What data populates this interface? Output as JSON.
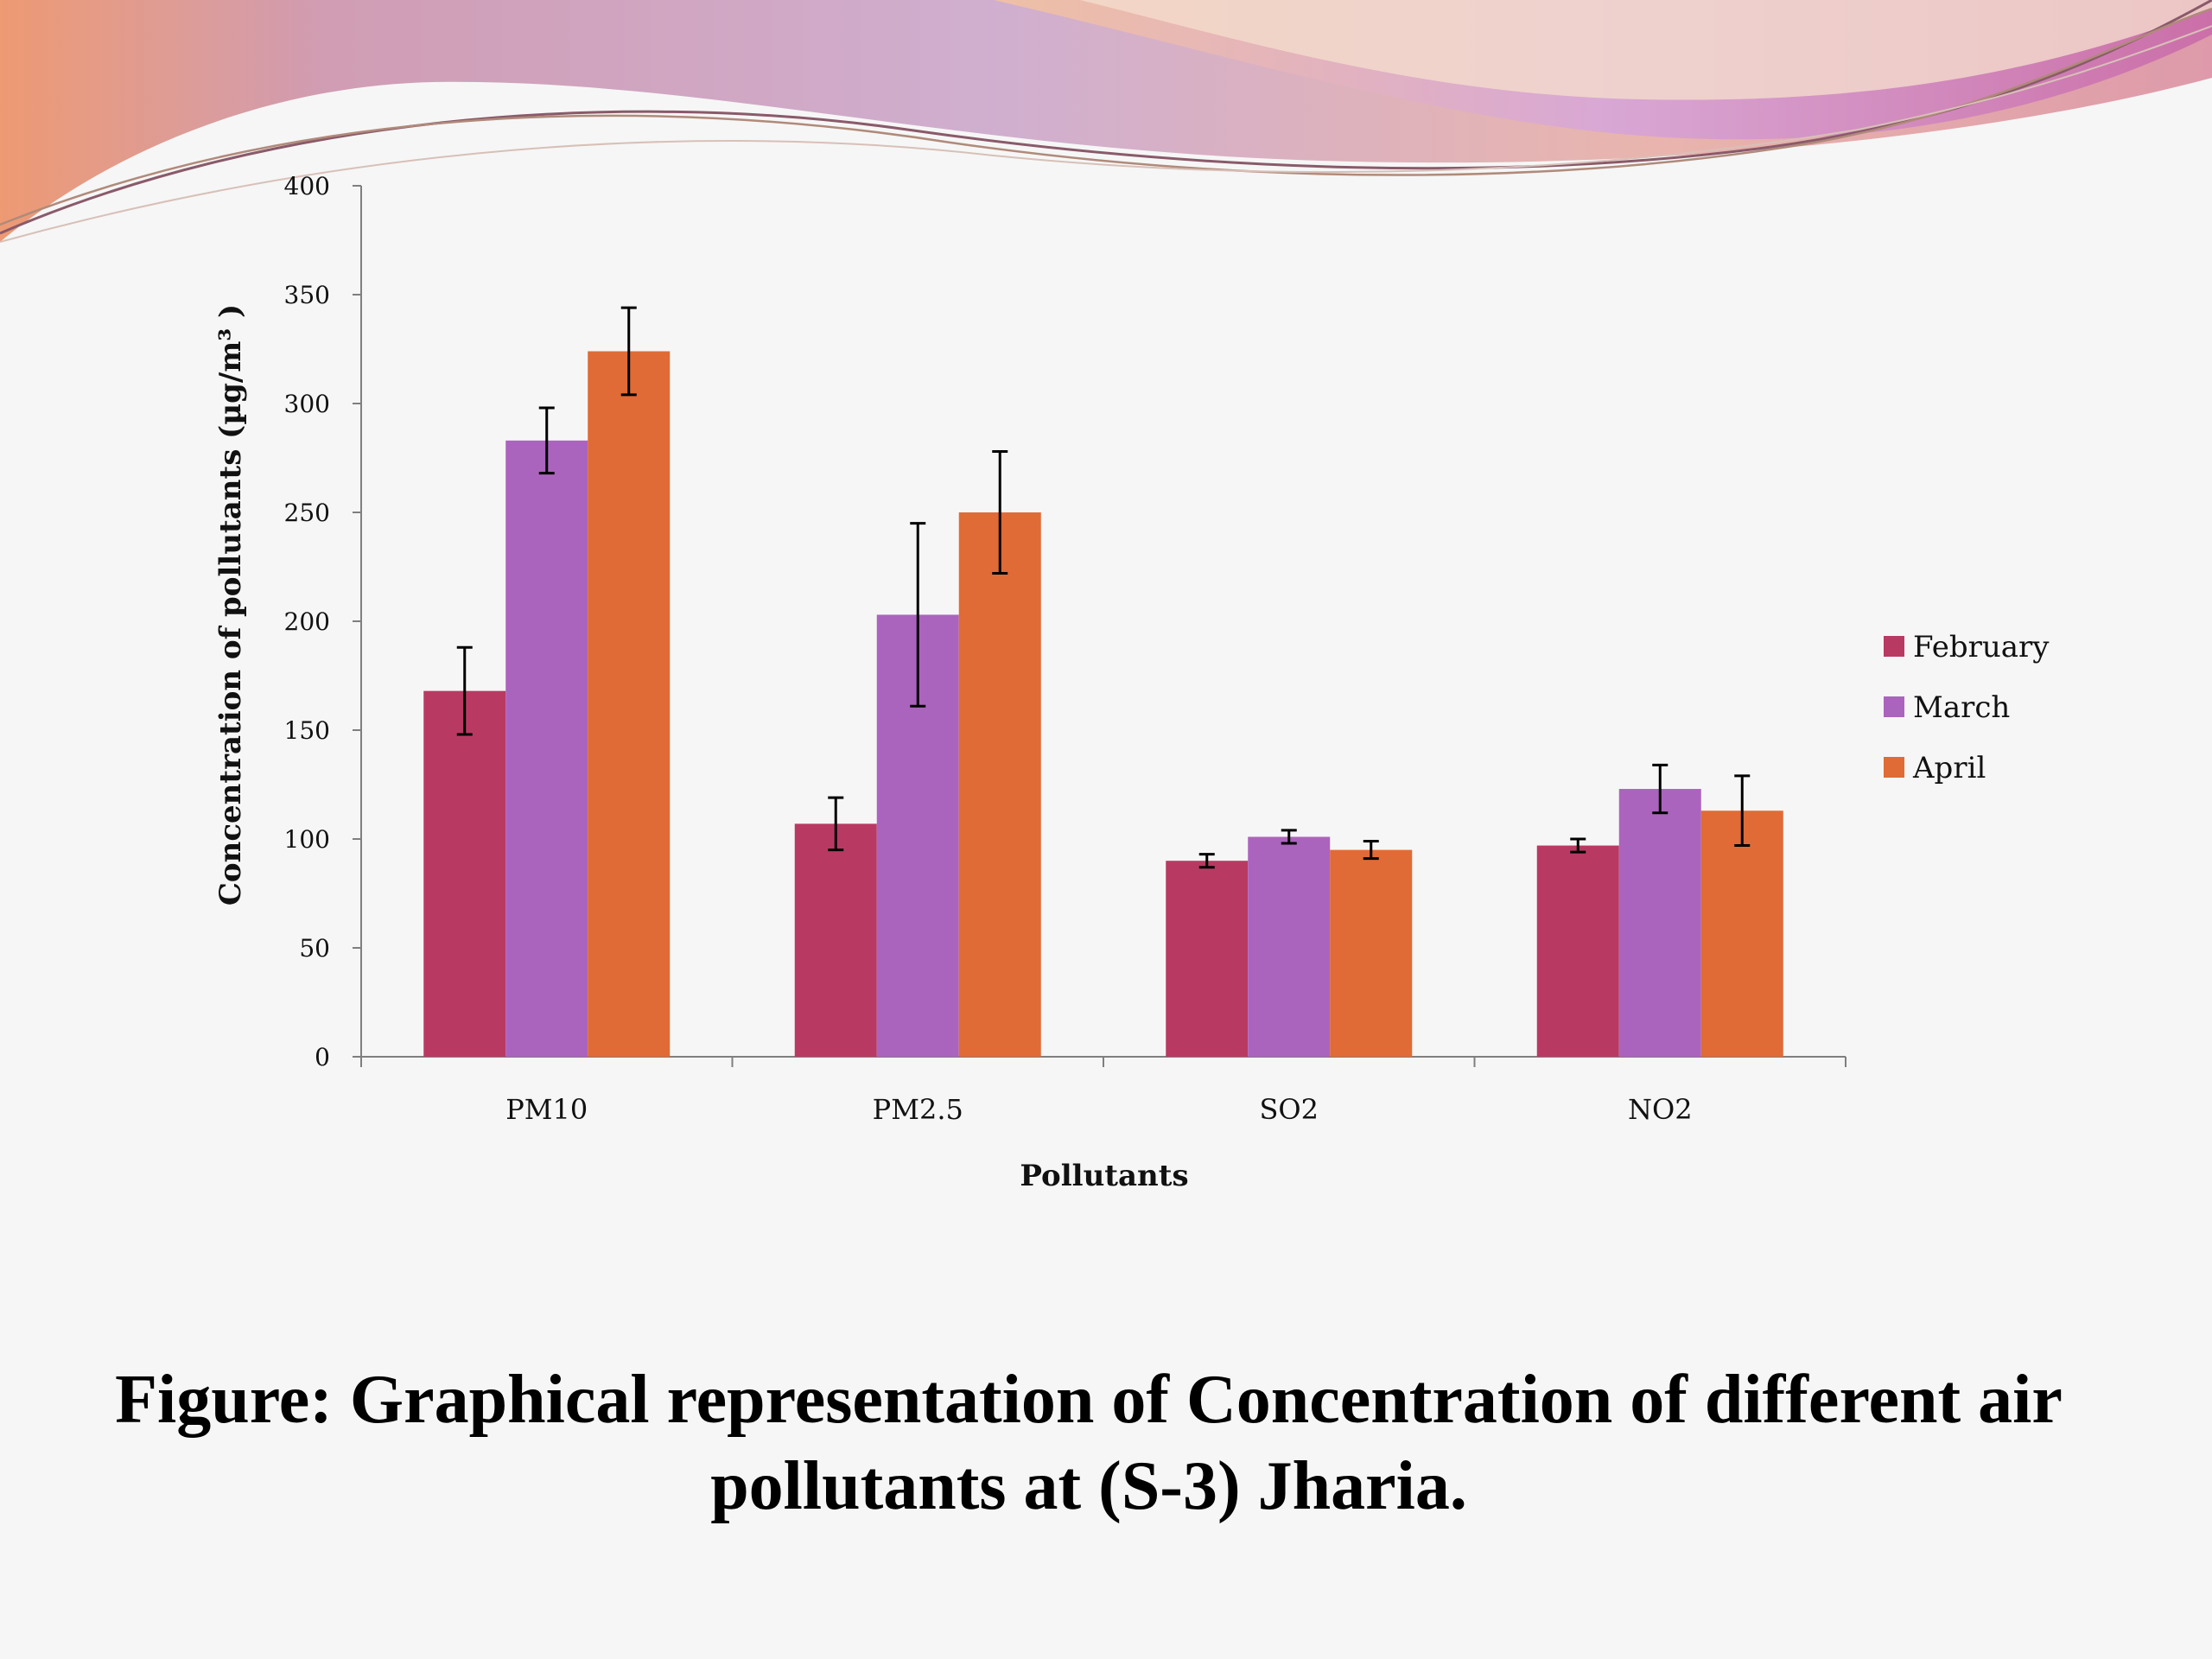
{
  "colors": {
    "background": "#f6f6f6",
    "february": "#b83a63",
    "march": "#ab64bd",
    "april": "#e06b36",
    "axis": "#7f7f7f"
  },
  "chart_data": {
    "type": "bar",
    "xlabel": "Pollutants",
    "ylabel": "Concentration of pollutants  (µg/m³ )",
    "ylim": [
      0,
      400
    ],
    "yticks": [
      0,
      50,
      100,
      150,
      200,
      250,
      300,
      350,
      400
    ],
    "grid": false,
    "legend_position": "right",
    "categories": [
      "PM10",
      "PM2.5",
      "SO2",
      "NO2"
    ],
    "series": [
      {
        "name": "February",
        "color": "#b83a63",
        "values": [
          168,
          107,
          90,
          97
        ],
        "errors": [
          20,
          12,
          3,
          3
        ]
      },
      {
        "name": "March",
        "color": "#ab64bd",
        "values": [
          283,
          203,
          101,
          123
        ],
        "errors": [
          15,
          42,
          3,
          11
        ]
      },
      {
        "name": "April",
        "color": "#e06b36",
        "values": [
          324,
          250,
          95,
          113
        ],
        "errors": [
          20,
          28,
          4,
          16
        ]
      }
    ]
  },
  "caption": {
    "line1": "Figure: Graphical representation of Concentration of different air",
    "line2": "pollutants at (S-3) Jharia."
  }
}
